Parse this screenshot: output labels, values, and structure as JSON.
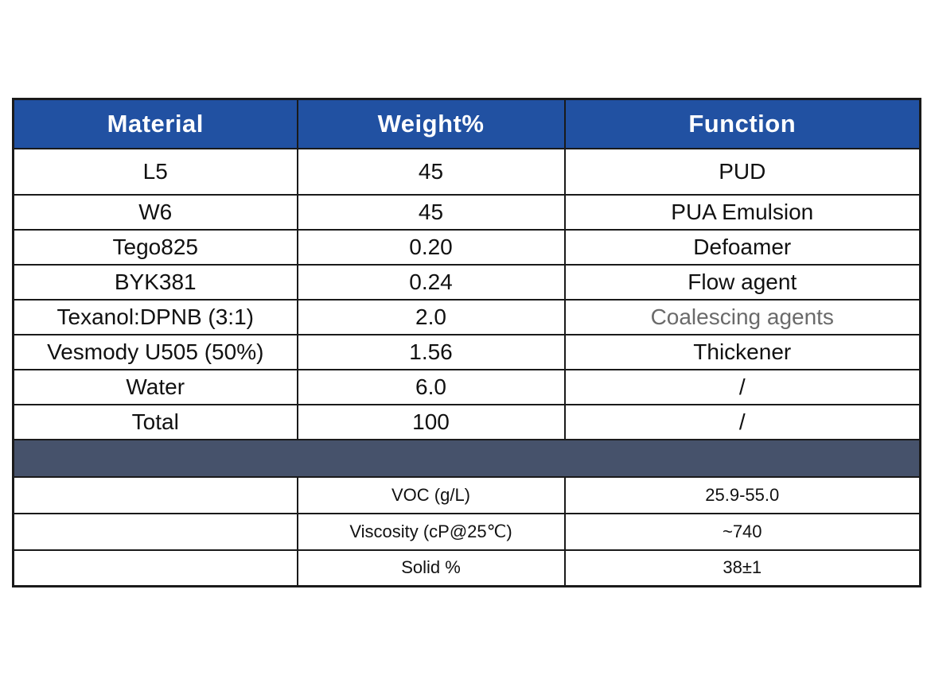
{
  "table": {
    "header": {
      "material": "Material",
      "weight": "Weight%",
      "function": "Function"
    },
    "rows": [
      {
        "material": "L5",
        "weight": "45",
        "function": "PUD"
      },
      {
        "material": "W6",
        "weight": "45",
        "function": "PUA Emulsion"
      },
      {
        "material": "Tego825",
        "weight": "0.20",
        "function": "Defoamer"
      },
      {
        "material": "BYK381",
        "weight": "0.24",
        "function": "Flow agent"
      },
      {
        "material": "Texanol:DPNB (3:1)",
        "weight": "2.0",
        "function": "Coalescing agents"
      },
      {
        "material": "Vesmody U505  (50%)",
        "weight": "1.56",
        "function": "Thickener"
      },
      {
        "material": "Water",
        "weight": "6.0",
        "function": "/"
      },
      {
        "material": "Total",
        "weight": "100",
        "function": "/"
      }
    ],
    "properties": [
      {
        "label": "VOC (g/L)",
        "value": "25.9-55.0"
      },
      {
        "label": "Viscosity (cP@25℃)",
        "value": "~740"
      },
      {
        "label": "Solid %",
        "value": "38±1"
      }
    ],
    "colors": {
      "header_bg": "#2151A2",
      "header_text": "#ffffff",
      "separator_bg": "#46526B",
      "border": "#1a1a1a",
      "muted_text": "#6a6a6a"
    }
  }
}
